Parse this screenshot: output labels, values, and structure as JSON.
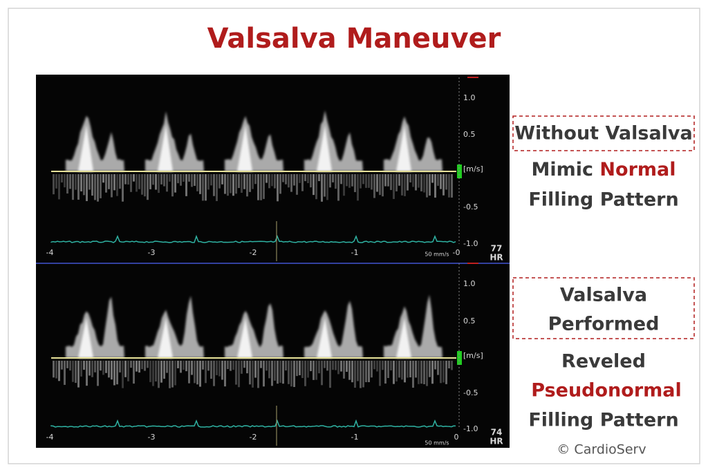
{
  "title": "Valsalva Maneuver",
  "panels": [
    {
      "y_labels": [
        "1.0",
        "0.5",
        "[m/s]",
        "-0.5",
        "-1.0"
      ],
      "x_labels": [
        "-4",
        "-3",
        "-2",
        "-1",
        "-0"
      ],
      "speed": "50 mm/s",
      "hr": "77",
      "hr_label": "HR"
    },
    {
      "y_labels": [
        "1.0",
        "0.5",
        "[m/s]",
        "-0.5",
        "-1.0"
      ],
      "x_labels": [
        "-4",
        "-3",
        "-2",
        "-1",
        "0"
      ],
      "speed": "50 mm/s",
      "hr": "74",
      "hr_label": "HR"
    }
  ],
  "top_caption": {
    "boxed": "Without Valsalva",
    "line1": [
      "Mimic",
      "Normal"
    ],
    "line2": "Filling Pattern"
  },
  "bottom_caption": {
    "boxed": [
      "Valsalva",
      "Performed"
    ],
    "line1": "Reveled",
    "highlight": "Pseudonormal",
    "line2": "Filling Pattern"
  },
  "copyright": "© CardioServ"
}
